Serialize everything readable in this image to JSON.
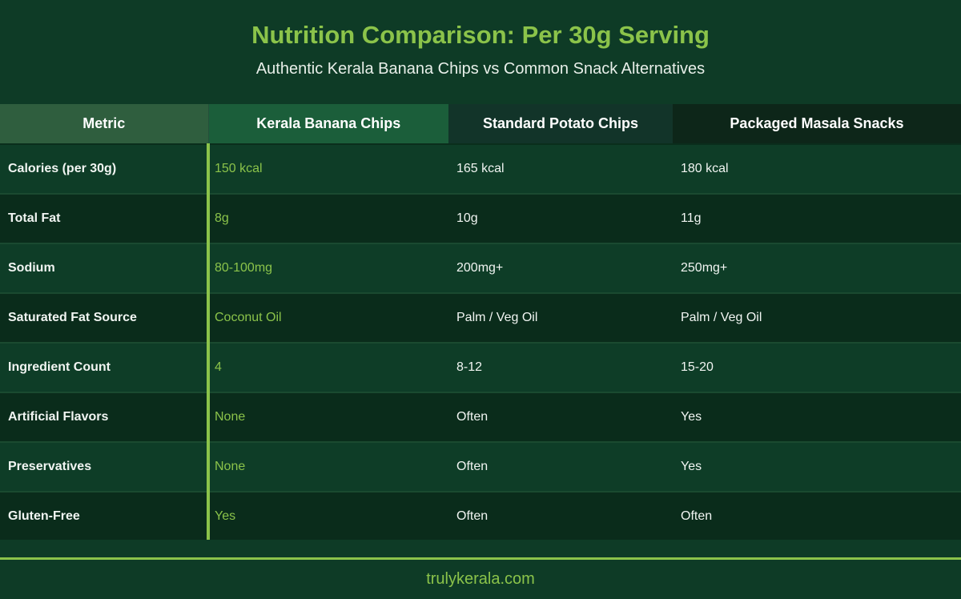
{
  "header": {
    "title": "Nutrition Comparison: Per 30g Serving",
    "subtitle": "Authentic Kerala Banana Chips vs Common Snack Alternatives"
  },
  "table": {
    "columns": [
      "Metric",
      "Kerala Banana Chips",
      "Standard Potato Chips",
      "Packaged Masala Snacks"
    ],
    "rows": [
      [
        "Calories (per 30g)",
        "150 kcal",
        "165 kcal",
        "180 kcal"
      ],
      [
        "Total Fat",
        "8g",
        "10g",
        "11g"
      ],
      [
        "Sodium",
        "80-100mg",
        "200mg+",
        "250mg+"
      ],
      [
        "Saturated Fat Source",
        "Coconut Oil",
        "Palm / Veg Oil",
        "Palm / Veg Oil"
      ],
      [
        "Ingredient Count",
        "4",
        "8-12",
        "15-20"
      ],
      [
        "Artificial Flavors",
        "None",
        "Often",
        "Yes"
      ],
      [
        "Preservatives",
        "None",
        "Often",
        "Yes"
      ],
      [
        "Gluten-Free",
        "Yes",
        "Often",
        "Often"
      ]
    ]
  },
  "footer": {
    "site": "trulykerala.com"
  },
  "colors": {
    "background": "#0e3b26",
    "accent": "#8bc34a",
    "row_dark": "#0a2c1b"
  }
}
